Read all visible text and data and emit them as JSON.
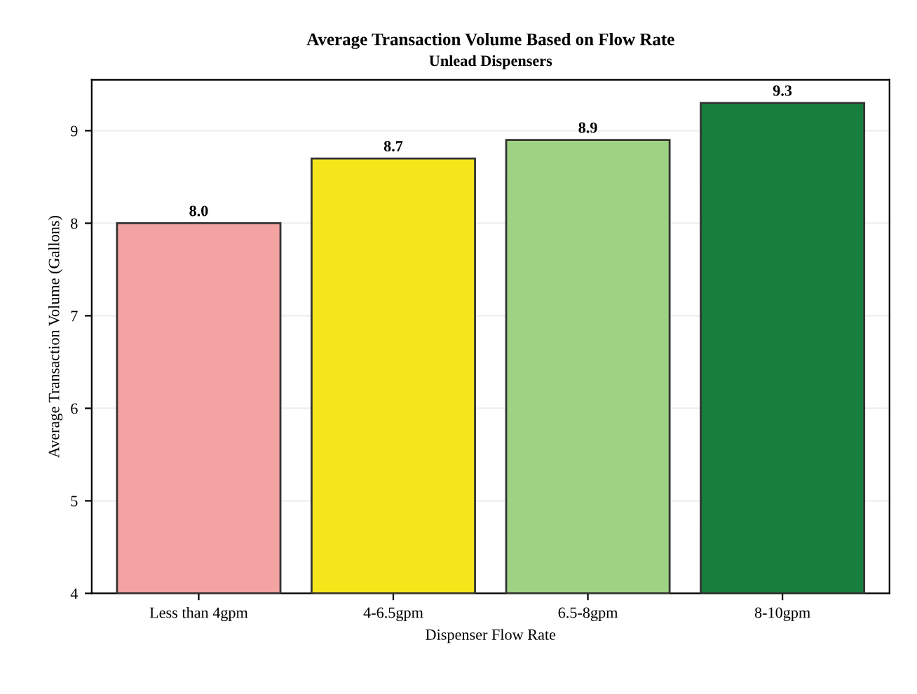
{
  "chart_data": {
    "type": "bar",
    "title": "Average Transaction Volume Based on Flow Rate",
    "subtitle": "Unlead Dispensers",
    "xlabel": "Dispenser Flow Rate",
    "ylabel": "Average Transaction Volume (Gallons)",
    "categories": [
      "Less than 4gpm",
      "4-6.5gpm",
      "6.5-8gpm",
      "8-10gpm"
    ],
    "values": [
      8.0,
      8.7,
      8.9,
      9.3
    ],
    "colors": [
      "#f4a3a3",
      "#f5e61b",
      "#9fd384",
      "#177f3e"
    ],
    "ylim": [
      4,
      9.55
    ],
    "yticks": [
      4,
      5,
      6,
      7,
      8,
      9
    ],
    "grid": "y",
    "value_labels": [
      "8.0",
      "8.7",
      "8.9",
      "9.3"
    ]
  }
}
